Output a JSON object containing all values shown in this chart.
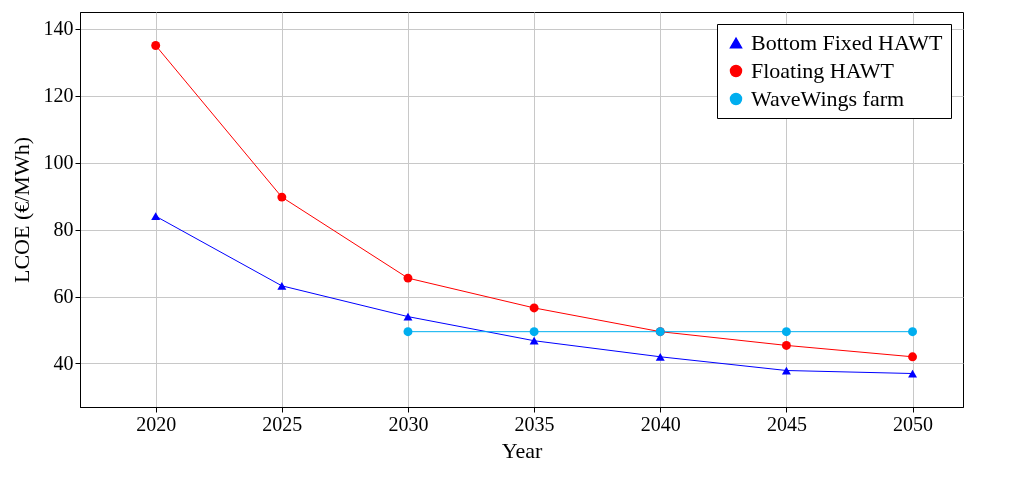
{
  "chart_data": {
    "type": "line",
    "xlabel": "Year",
    "ylabel": "LCOE (€/MWh)",
    "x": [
      2020,
      2025,
      2030,
      2035,
      2040,
      2045,
      2050
    ],
    "series": [
      {
        "name": "Bottom Fixed HAWT",
        "color": "#0000ff",
        "marker": "triangle",
        "values": [
          84,
          63.2,
          54,
          46.8,
          42,
          37.9,
          37
        ]
      },
      {
        "name": "Floating HAWT",
        "color": "#ff0000",
        "marker": "circle",
        "values": [
          135,
          89.7,
          65.5,
          56.6,
          49.5,
          45.4,
          42
        ]
      },
      {
        "name": "WaveWings farm",
        "color": "#00aeef",
        "marker": "circle",
        "values": [
          null,
          null,
          49.5,
          49.5,
          49.5,
          49.5,
          49.5
        ]
      }
    ],
    "xlim": [
      2017,
      2052
    ],
    "xticks": [
      2020,
      2025,
      2030,
      2035,
      2040,
      2045,
      2050
    ],
    "ylim": [
      27,
      145
    ],
    "yticks": [
      40,
      60,
      80,
      100,
      120,
      140
    ],
    "grid": true,
    "legend": "top right",
    "line_style": "solid"
  }
}
